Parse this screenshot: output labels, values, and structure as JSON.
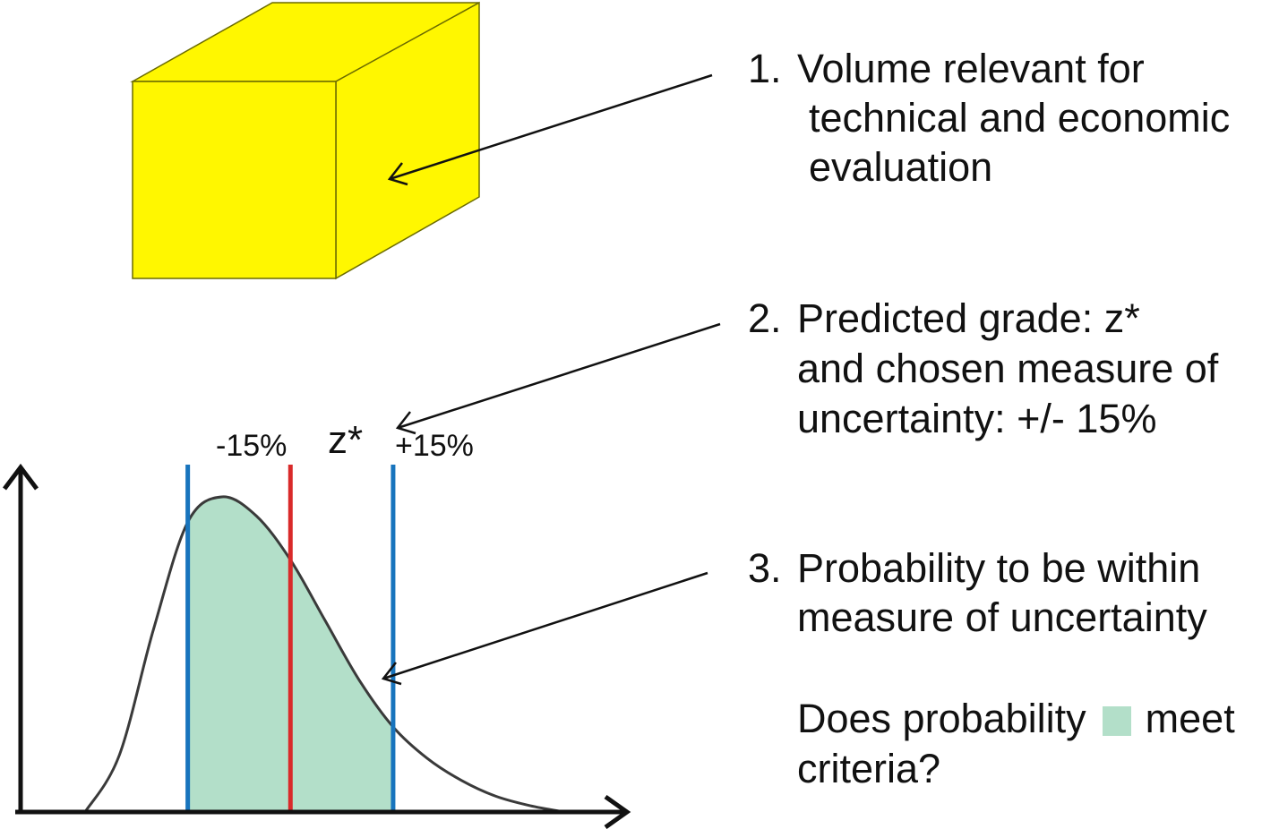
{
  "colors": {
    "box_face": "#fff700",
    "box_edge": "#6b6b00",
    "curve_fill": "#b3dfc9",
    "curve_stroke": "#3a3a3a",
    "limit_line": "#1874bd",
    "estimate_line": "#d92a2a",
    "axes": "#111111",
    "arrow": "#111111"
  },
  "items": [
    {
      "number": "1.",
      "lines": [
        "Volume relevant for",
        "technical and economic",
        "evaluation"
      ]
    },
    {
      "number": "2.",
      "lines": [
        "Predicted grade: z*",
        "and chosen measure of",
        "uncertainty:  +/- 15%"
      ]
    },
    {
      "number": "3.",
      "lines": [
        "Probability to be within",
        "measure of uncertainty"
      ]
    }
  ],
  "question": {
    "before": "Does probability",
    "after": "meet",
    "line2": "criteria?"
  },
  "chart_data": {
    "type": "area",
    "title": "",
    "xlabel": "",
    "ylabel": "",
    "markers": [
      {
        "label": "-15%",
        "x": -15,
        "color": "#1874bd"
      },
      {
        "label": "z*",
        "x": 0,
        "color": "#d92a2a"
      },
      {
        "label": "+15%",
        "x": 15,
        "color": "#1874bd"
      }
    ],
    "shaded_region": {
      "from": -15,
      "to": 15,
      "color": "#b3dfc9"
    },
    "xlim": [
      -30,
      40
    ],
    "curve": {
      "x": [
        -30,
        -25,
        -20,
        -15,
        -10,
        -5,
        0,
        5,
        10,
        15,
        20,
        25,
        30,
        35,
        40
      ],
      "y": [
        0.0,
        0.18,
        0.58,
        0.92,
        1.0,
        0.94,
        0.8,
        0.61,
        0.42,
        0.27,
        0.17,
        0.1,
        0.05,
        0.02,
        0.0
      ]
    },
    "grid": false,
    "legend": "none"
  }
}
